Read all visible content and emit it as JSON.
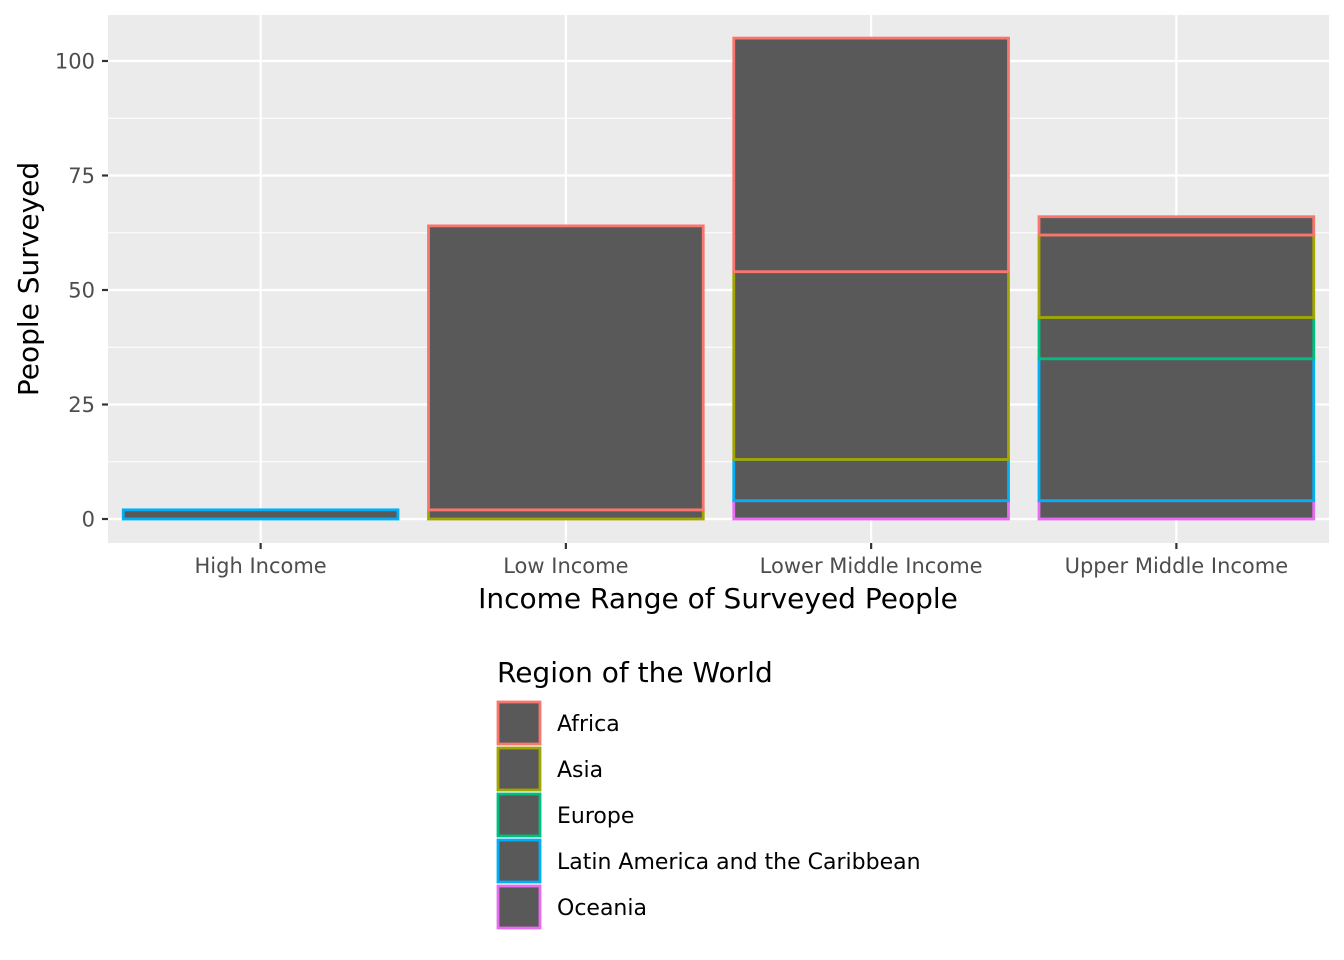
{
  "chart_data": {
    "type": "bar",
    "stacked": true,
    "bar_fill": "#595959",
    "panel_background": "#ebebeb",
    "grid": true,
    "xlabel": "Income Range of Surveyed People",
    "ylabel": "People Surveyed",
    "categories": [
      "High Income",
      "Low Income",
      "Lower Middle Income",
      "Upper Middle Income"
    ],
    "yticks": [
      0,
      25,
      50,
      75,
      100
    ],
    "ylim": [
      -5,
      110
    ],
    "legend": {
      "title": "Region of the World",
      "position": "bottom"
    },
    "series": [
      {
        "name": "Africa",
        "color": "#F8766D",
        "values": [
          0,
          62,
          51,
          4
        ]
      },
      {
        "name": "Asia",
        "color": "#A3A500",
        "values": [
          0,
          2,
          41,
          18
        ]
      },
      {
        "name": "Europe",
        "color": "#00BF7D",
        "values": [
          0,
          0,
          0,
          9
        ]
      },
      {
        "name": "Latin America and the Caribbean",
        "color": "#00B0F6",
        "values": [
          2,
          0,
          9,
          31
        ]
      },
      {
        "name": "Oceania",
        "color": "#E76BF3",
        "values": [
          0,
          0,
          4,
          4
        ]
      }
    ]
  }
}
